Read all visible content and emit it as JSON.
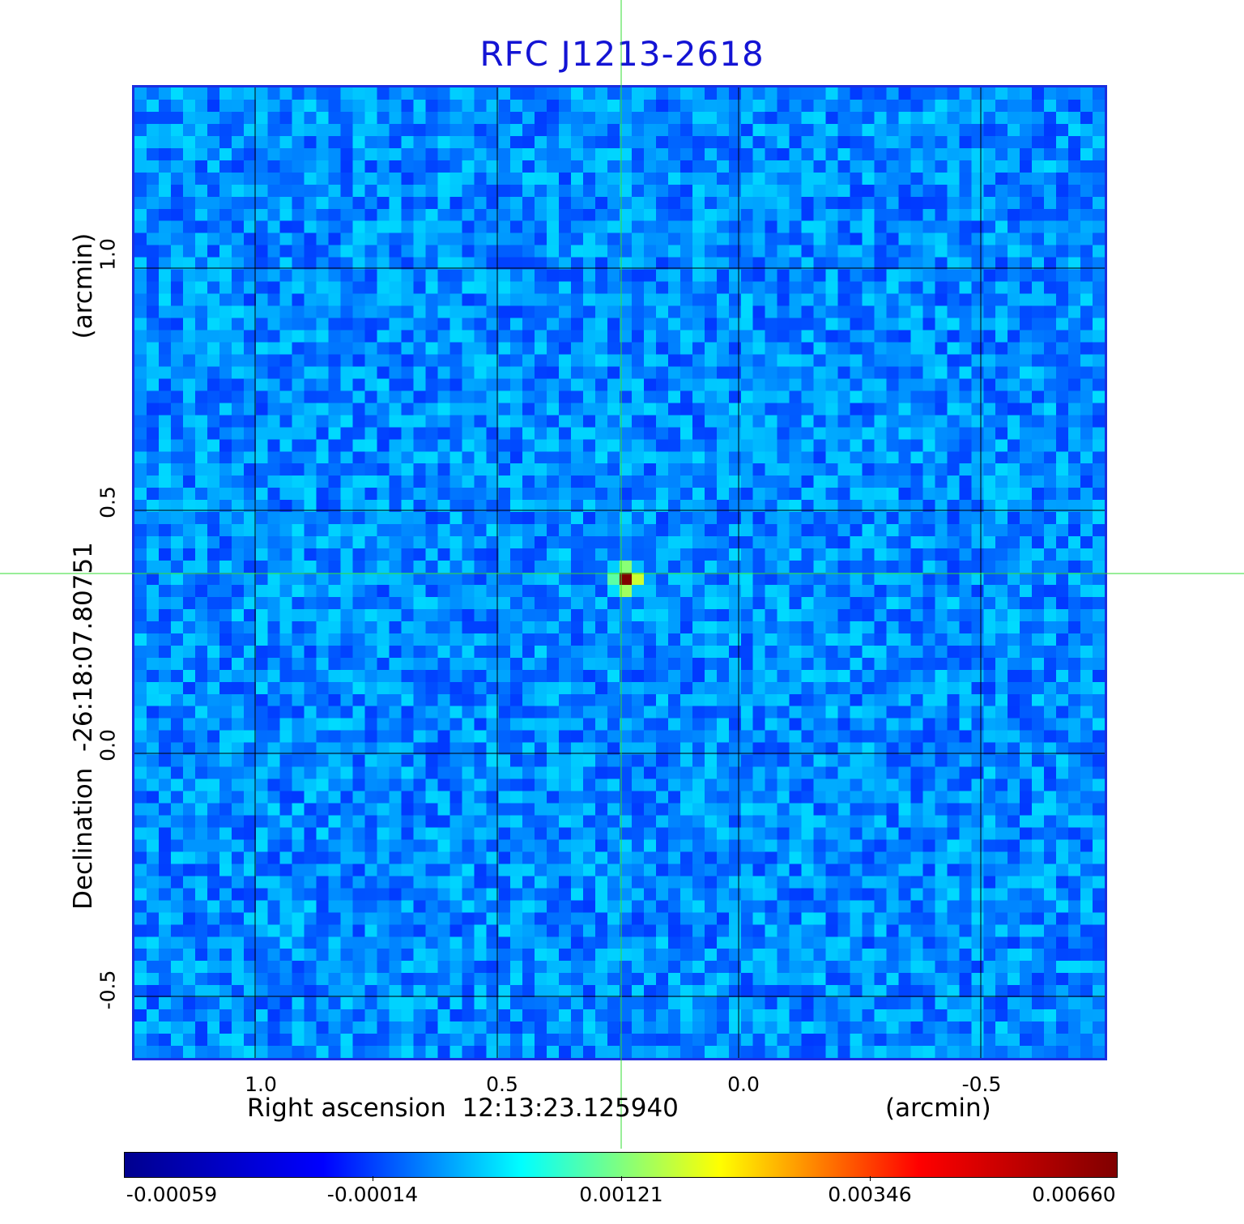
{
  "title": "RFC J1213-2618",
  "x_axis": {
    "label": "Right ascension  12:13:23.125940",
    "unit": "(arcmin)",
    "ticks": [
      "1.0",
      "0.5",
      "0.0",
      "-0.5"
    ]
  },
  "y_axis": {
    "label": "Declination  -26:18:07.80751",
    "unit": "(arcmin)",
    "ticks": [
      "1.0",
      "0.5",
      "0.0",
      "-0.5"
    ]
  },
  "colorbar": {
    "ticks": [
      "-0.00059",
      "-0.00014",
      "0.00121",
      "0.00346",
      "0.00660"
    ],
    "colormap": [
      "#00008f",
      "#0000ff",
      "#00ffff",
      "#ffff00",
      "#ff0000",
      "#800000"
    ]
  },
  "colors": {
    "title": "#1414d4",
    "frame": "#1a2ee0",
    "crosshair": "#33dd33",
    "grid": "#000000"
  }
}
